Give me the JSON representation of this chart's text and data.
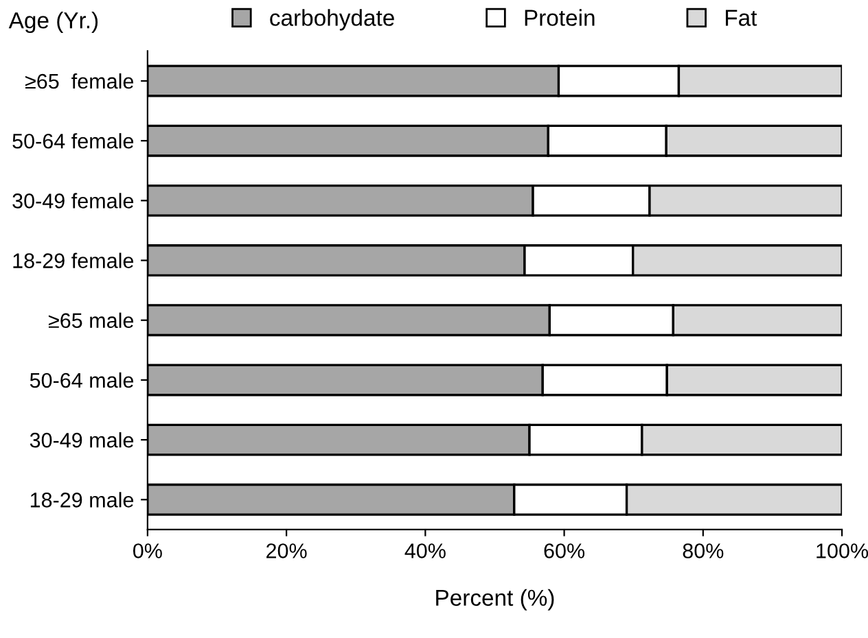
{
  "chart_data": {
    "type": "bar",
    "orientation": "horizontal",
    "stacked": true,
    "categories": [
      "≥65  female",
      "50-64 female",
      "30-49 female",
      "18-29 female",
      "≥65 male",
      "50-64 male",
      "30-49 male",
      "18-29 male"
    ],
    "series": [
      {
        "name": "carbohydate",
        "color": "#a6a6a6",
        "values": [
          59.2,
          57.7,
          55.5,
          54.3,
          57.9,
          56.9,
          55.0,
          52.8
        ]
      },
      {
        "name": "Protein",
        "color": "#ffffff",
        "values": [
          17.3,
          17.0,
          16.8,
          15.6,
          17.8,
          17.9,
          16.2,
          16.2
        ]
      },
      {
        "name": "Fat",
        "color": "#d9d9d9",
        "values": [
          23.5,
          25.3,
          27.7,
          30.1,
          24.3,
          25.2,
          28.8,
          31.0
        ]
      }
    ],
    "xlim": [
      0,
      100
    ],
    "xticks": [
      {
        "value": 0,
        "label": "0%"
      },
      {
        "value": 20,
        "label": "20%"
      },
      {
        "value": 40,
        "label": "40%"
      },
      {
        "value": 60,
        "label": "60%"
      },
      {
        "value": 80,
        "label": "80%"
      },
      {
        "value": 100,
        "label": "100%"
      }
    ],
    "xlabel": "Percent (%)",
    "ylabel": "Age (Yr.)",
    "legend": "top",
    "grid": false
  }
}
